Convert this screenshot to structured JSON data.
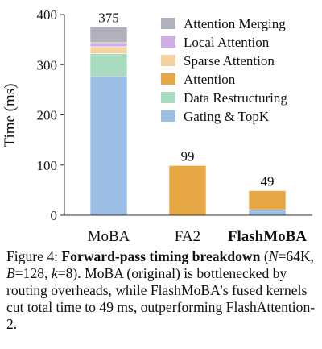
{
  "chart_data": {
    "type": "bar",
    "stacked": true,
    "categories": [
      "MoBA",
      "FA2",
      "FlashMoBA"
    ],
    "bold_categories": [
      "FlashMoBA"
    ],
    "ylabel": "Time (ms)",
    "ylim": [
      0,
      400
    ],
    "yticks": [
      0,
      100,
      200,
      300,
      400
    ],
    "grid": false,
    "legend_position": "top-right",
    "totals": [
      375,
      99,
      49
    ],
    "series": [
      {
        "name": "Gating & TopK",
        "color": "#9dbfe6",
        "values": [
          276,
          0,
          11
        ]
      },
      {
        "name": "Data Restructuring",
        "color": "#a9dbc1",
        "values": [
          46,
          0,
          0
        ]
      },
      {
        "name": "Attention",
        "color": "#e8a745",
        "values": [
          0,
          99,
          38
        ]
      },
      {
        "name": "Sparse Attention",
        "color": "#f3d3a2",
        "values": [
          14,
          0,
          0
        ]
      },
      {
        "name": "Local Attention",
        "color": "#cfaee6",
        "values": [
          8,
          0,
          0
        ]
      },
      {
        "name": "Attention Merging",
        "color": "#b0b1bc",
        "values": [
          31,
          0,
          0
        ]
      }
    ],
    "legend_order": [
      "Attention Merging",
      "Local Attention",
      "Sparse Attention",
      "Attention",
      "Data Restructuring",
      "Gating & TopK"
    ]
  },
  "caption": {
    "label": "Figure 4: ",
    "title": "Forward-pass timing breakdown",
    "open": "(",
    "n_sym": "N",
    "n_val": "=64K, ",
    "b_sym": "B",
    "b_val": "=128, ",
    "k_sym": "k",
    "k_val": "=8).",
    "body": " MoBA (original) is bottlenecked by routing overheads, while FlashMoBA’s fused kernels cut total time to 49 ms, outperforming FlashAttention-2."
  }
}
